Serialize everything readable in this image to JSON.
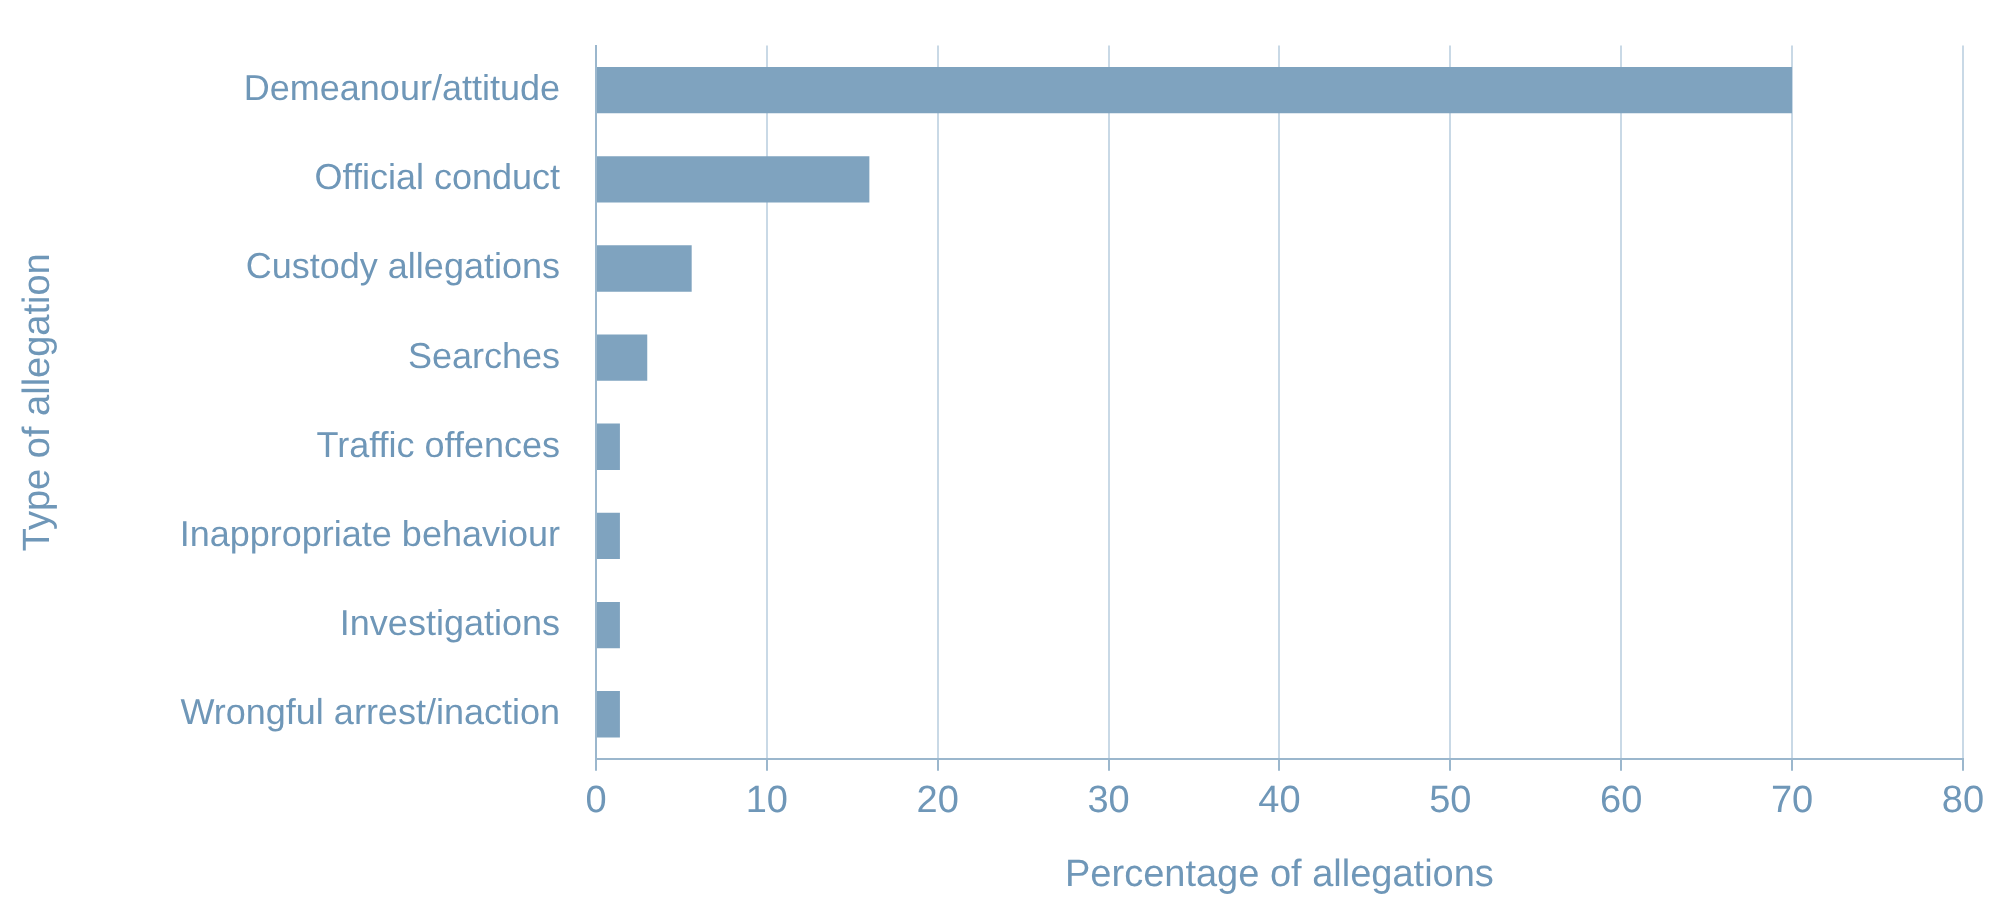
{
  "chart_data": {
    "type": "bar",
    "orientation": "horizontal",
    "xlabel": "Percentage of allegations",
    "ylabel": "Type of allegation",
    "categories": [
      "Demeanour/attitude",
      "Official conduct",
      "Custody allegations",
      "Searches",
      "Traffic offences",
      "Inappropriate behaviour",
      "Investigations",
      "Wrongful arrest/inaction"
    ],
    "values": [
      70,
      16,
      5.6,
      3,
      1.4,
      1.4,
      1.4,
      1.4
    ],
    "color": "#7fa3bf",
    "xlim": [
      0,
      80
    ],
    "xticks": [
      0,
      10,
      20,
      30,
      40,
      50,
      60,
      70,
      80
    ],
    "grid": "x"
  }
}
